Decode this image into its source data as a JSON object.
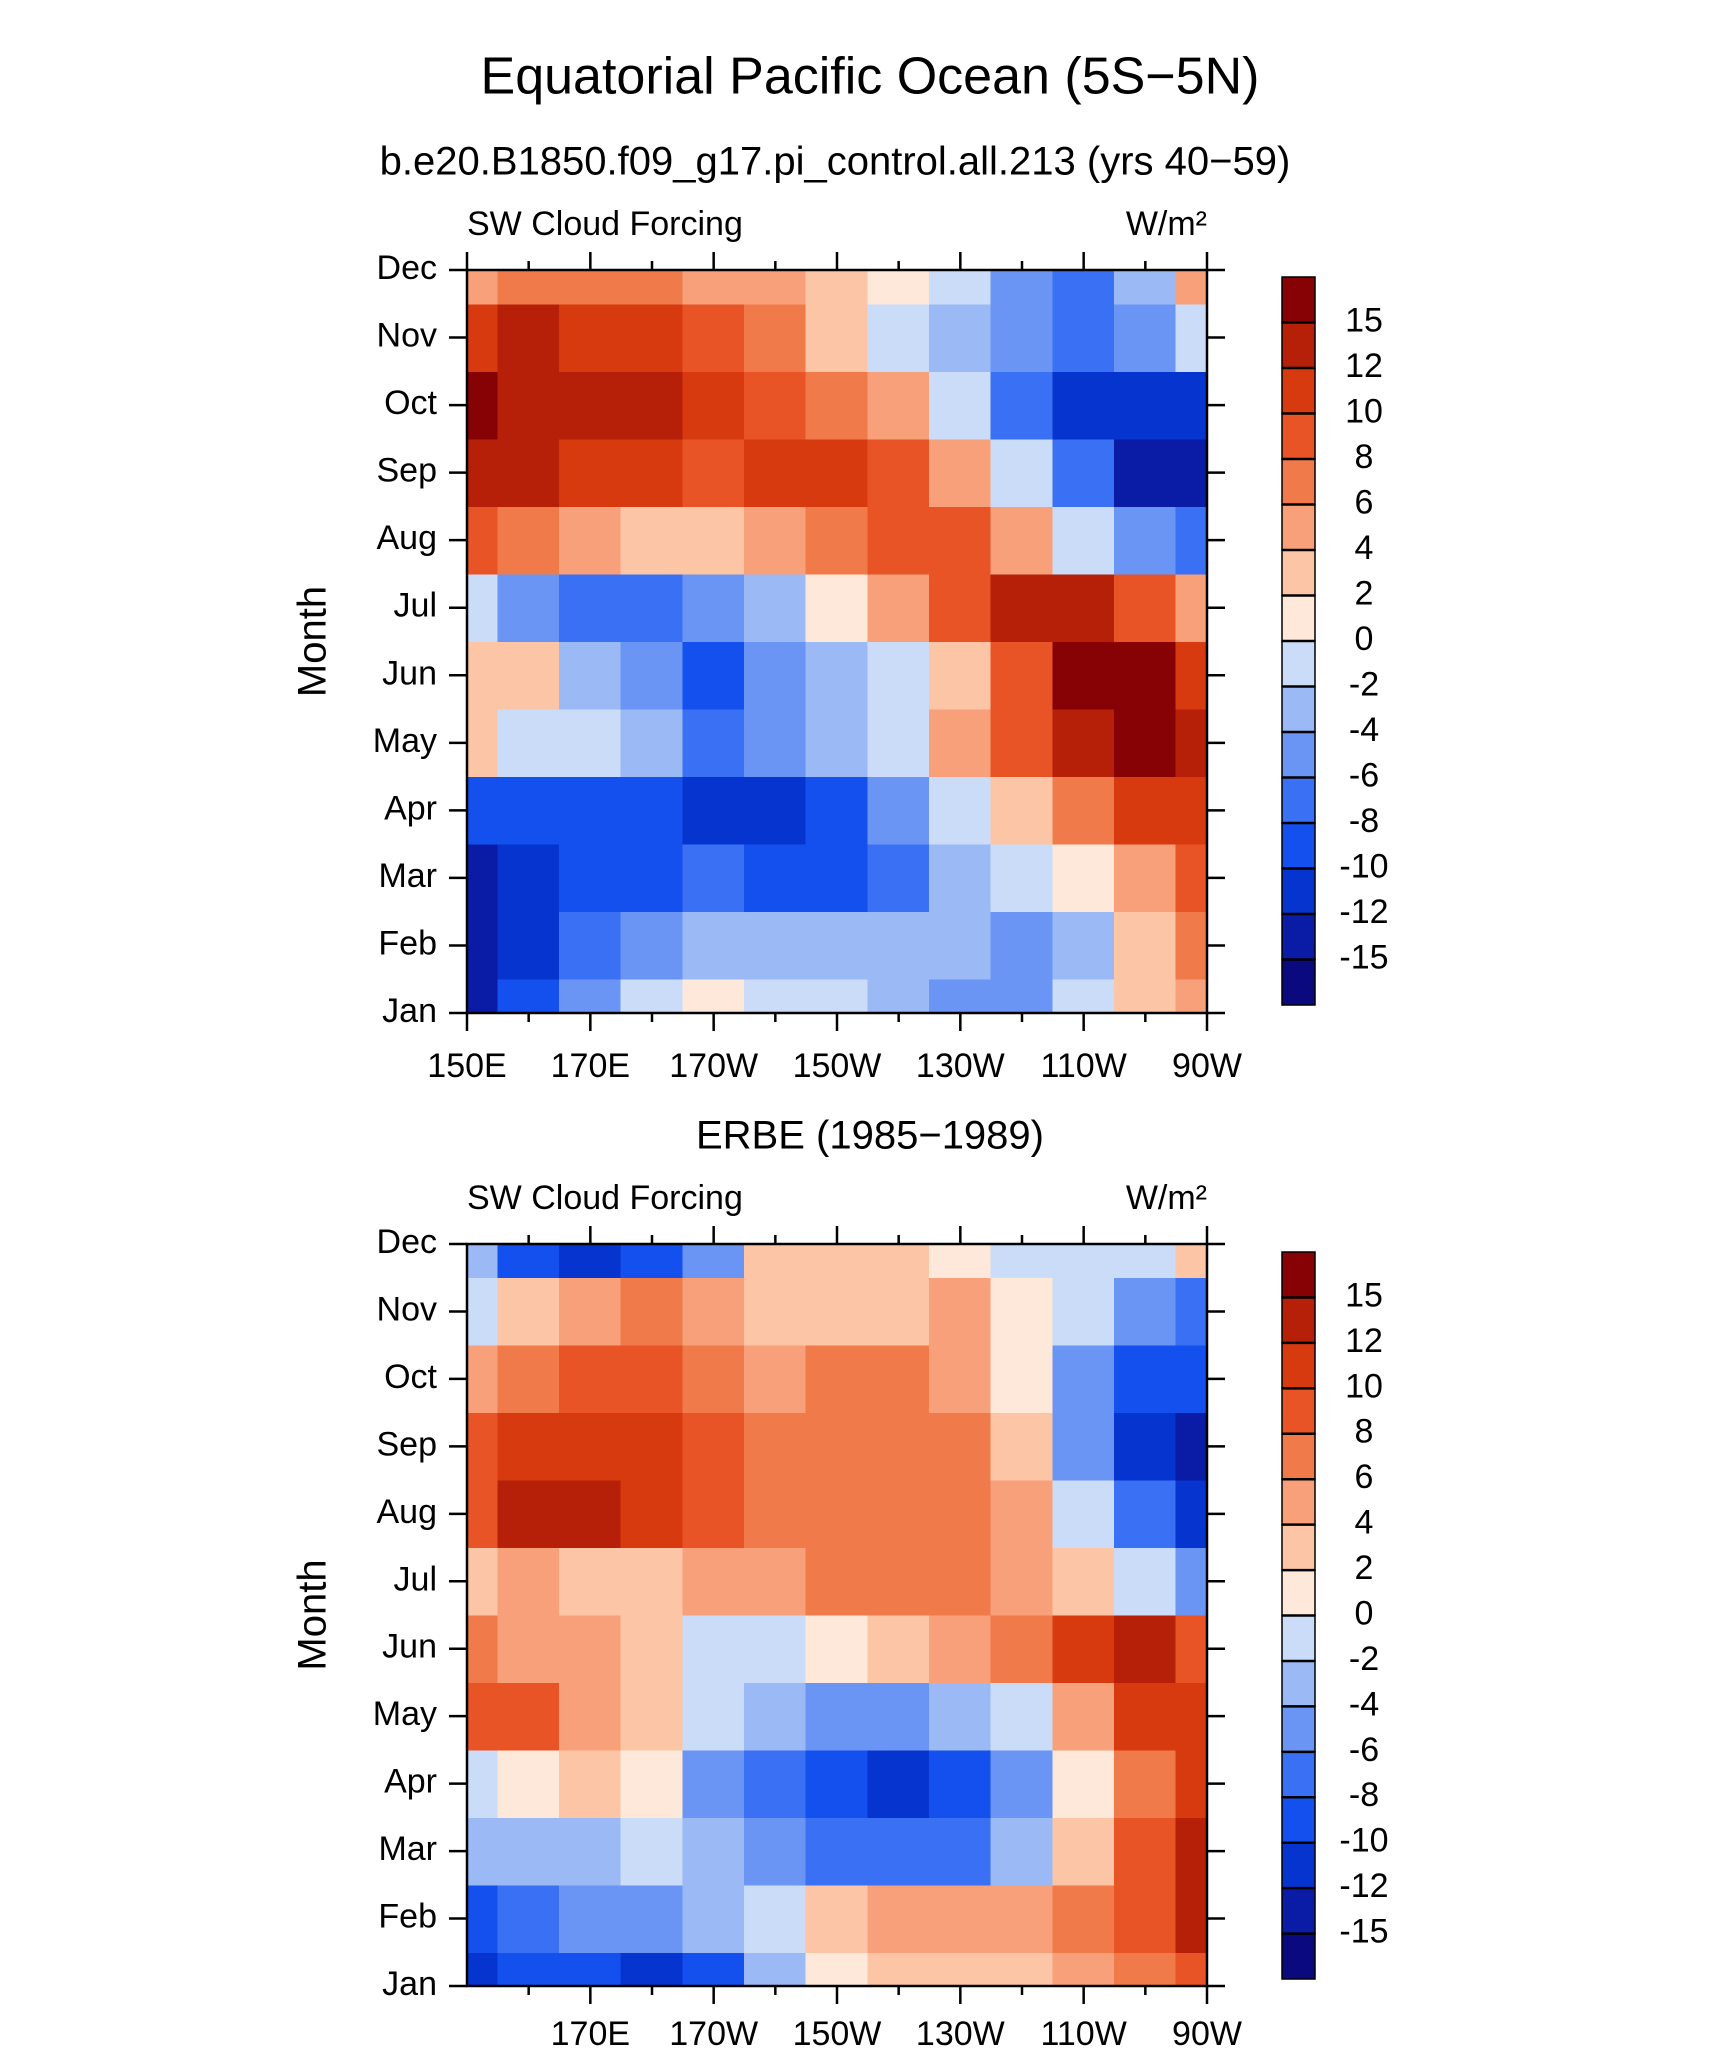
{
  "chart_data": [
    {
      "type": "contour",
      "title": "Equatorial Pacific Ocean (5S−5N)",
      "subtitle": "b.e20.B1850.f09_g17.pi_control.all.213 (yrs 40−59)",
      "left_label": "SW Cloud Forcing",
      "right_label": "W/m²",
      "ylabel": "Month",
      "categories": [
        "Jan",
        "Feb",
        "Mar",
        "Apr",
        "May",
        "Jun",
        "Jul",
        "Aug",
        "Sep",
        "Oct",
        "Nov",
        "Dec"
      ],
      "x": [
        150,
        160,
        170,
        180,
        190,
        200,
        210,
        220,
        230,
        240,
        250,
        260,
        270
      ],
      "xlim": [
        150,
        270
      ],
      "xticks": [
        {
          "value": 150,
          "label": "150E"
        },
        {
          "value": 170,
          "label": "170E"
        },
        {
          "value": 190,
          "label": "170W"
        },
        {
          "value": 210,
          "label": "150W"
        },
        {
          "value": 230,
          "label": "130W"
        },
        {
          "value": 250,
          "label": "110W"
        },
        {
          "value": 270,
          "label": "90W"
        }
      ],
      "xminor": [
        160,
        180,
        200,
        220,
        240,
        260
      ],
      "levels": [
        -15,
        -12,
        -10,
        -8,
        -6,
        -4,
        -2,
        0,
        2,
        4,
        6,
        8,
        10,
        12,
        15
      ],
      "colors": [
        "#0a0a7e",
        "#0a1ca6",
        "#0634cf",
        "#1450ee",
        "#3a70f4",
        "#6a95f4",
        "#9bb9f5",
        "#cadcf8",
        "#fde8da",
        "#fcc6a6",
        "#f8a07a",
        "#f07a4a",
        "#e85426",
        "#d83a10",
        "#b62008",
        "#860204"
      ],
      "z": [
        [
          -15,
          -10,
          -6,
          -2,
          0,
          -2,
          -2,
          -4,
          -6,
          -6,
          -2,
          2,
          4
        ],
        [
          -15,
          -12,
          -8,
          -6,
          -4,
          -4,
          -4,
          -4,
          -4,
          -6,
          -4,
          2,
          6
        ],
        [
          -14,
          -12,
          -10,
          -10,
          -8,
          -10,
          -10,
          -8,
          -4,
          -2,
          0,
          4,
          8
        ],
        [
          -10,
          -10,
          -10,
          -10,
          -12,
          -12,
          -10,
          -6,
          -2,
          2,
          6,
          10,
          10
        ],
        [
          2,
          -2,
          -2,
          -4,
          -8,
          -6,
          -4,
          -2,
          4,
          8,
          12,
          15,
          12
        ],
        [
          2,
          2,
          -4,
          -6,
          -10,
          -6,
          -4,
          -2,
          2,
          8,
          15,
          15,
          10
        ],
        [
          -2,
          -6,
          -8,
          -8,
          -6,
          -4,
          0,
          4,
          8,
          12,
          12,
          8,
          4
        ],
        [
          8,
          6,
          4,
          2,
          2,
          4,
          6,
          8,
          8,
          4,
          -2,
          -6,
          -8
        ],
        [
          12,
          12,
          10,
          10,
          8,
          10,
          10,
          8,
          4,
          -2,
          -8,
          -15,
          -15
        ],
        [
          15,
          12,
          12,
          12,
          10,
          8,
          6,
          4,
          -2,
          -8,
          -12,
          -12,
          -12
        ],
        [
          10,
          12,
          10,
          10,
          8,
          6,
          2,
          -2,
          -4,
          -6,
          -8,
          -6,
          -2
        ],
        [
          4,
          6,
          6,
          6,
          4,
          4,
          2,
          0,
          -2,
          -6,
          -8,
          -4,
          4
        ]
      ]
    },
    {
      "type": "contour",
      "title": "ERBE (1985−1989)",
      "left_label": "SW Cloud Forcing",
      "right_label": "W/m²",
      "ylabel": "Month",
      "categories": [
        "Jan",
        "Feb",
        "Mar",
        "Apr",
        "May",
        "Jun",
        "Jul",
        "Aug",
        "Sep",
        "Oct",
        "Nov",
        "Dec"
      ],
      "x": [
        150,
        160,
        170,
        180,
        190,
        200,
        210,
        220,
        230,
        240,
        250,
        260,
        270
      ],
      "xlim": [
        150,
        270
      ],
      "xticks": [
        {
          "value": 170,
          "label": "170E"
        },
        {
          "value": 190,
          "label": "170W"
        },
        {
          "value": 210,
          "label": "150W"
        },
        {
          "value": 230,
          "label": "130W"
        },
        {
          "value": 250,
          "label": "110W"
        },
        {
          "value": 270,
          "label": "90W"
        }
      ],
      "xminor": [
        160,
        180,
        200,
        220,
        240,
        260
      ],
      "levels": [
        -15,
        -12,
        -10,
        -8,
        -6,
        -4,
        -2,
        0,
        2,
        4,
        6,
        8,
        10,
        12,
        15
      ],
      "colors": [
        "#0a0a7e",
        "#0a1ca6",
        "#0634cf",
        "#1450ee",
        "#3a70f4",
        "#6a95f4",
        "#9bb9f5",
        "#cadcf8",
        "#fde8da",
        "#fcc6a6",
        "#f8a07a",
        "#f07a4a",
        "#e85426",
        "#d83a10",
        "#b62008",
        "#860204"
      ],
      "z": [
        [
          -12,
          -10,
          -10,
          -12,
          -10,
          -4,
          0,
          2,
          2,
          2,
          4,
          6,
          8
        ],
        [
          -10,
          -8,
          -6,
          -6,
          -4,
          -2,
          2,
          4,
          4,
          4,
          6,
          8,
          12
        ],
        [
          -4,
          -4,
          -4,
          -2,
          -4,
          -6,
          -8,
          -8,
          -8,
          -4,
          2,
          8,
          12
        ],
        [
          -2,
          0,
          2,
          0,
          -6,
          -8,
          -10,
          -12,
          -10,
          -6,
          0,
          6,
          10
        ],
        [
          8,
          8,
          4,
          2,
          -2,
          -4,
          -6,
          -6,
          -4,
          -2,
          4,
          10,
          10
        ],
        [
          6,
          4,
          4,
          2,
          -2,
          -2,
          0,
          2,
          4,
          6,
          10,
          12,
          8
        ],
        [
          2,
          4,
          2,
          2,
          4,
          4,
          6,
          6,
          6,
          4,
          2,
          -2,
          -6
        ],
        [
          8,
          12,
          12,
          10,
          8,
          6,
          6,
          6,
          6,
          4,
          -2,
          -8,
          -12
        ],
        [
          8,
          10,
          10,
          10,
          8,
          6,
          6,
          6,
          6,
          2,
          -6,
          -12,
          -14
        ],
        [
          4,
          6,
          8,
          8,
          6,
          4,
          6,
          6,
          4,
          0,
          -6,
          -10,
          -10
        ],
        [
          -2,
          2,
          4,
          6,
          4,
          2,
          2,
          2,
          4,
          0,
          -2,
          -6,
          -8
        ],
        [
          -4,
          -10,
          -12,
          -10,
          -6,
          2,
          2,
          2,
          0,
          -2,
          -2,
          -2,
          2
        ]
      ]
    }
  ]
}
